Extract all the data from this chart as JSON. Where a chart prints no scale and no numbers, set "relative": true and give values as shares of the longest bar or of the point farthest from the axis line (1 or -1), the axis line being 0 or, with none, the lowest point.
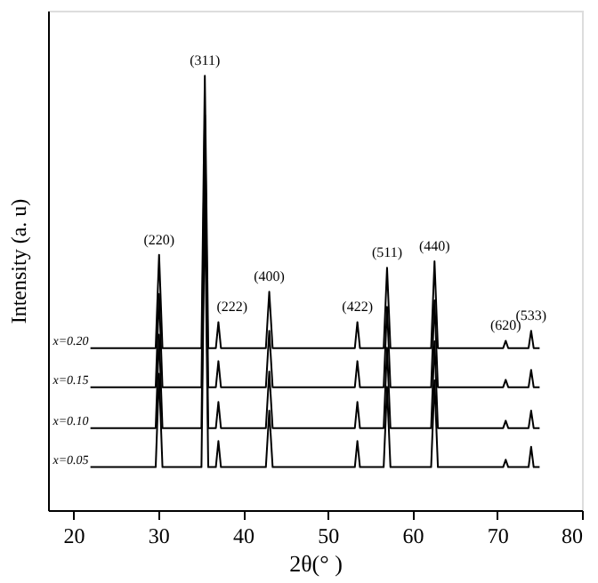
{
  "chart_data": {
    "type": "line",
    "relative": true,
    "xlabel": "2θ(° )",
    "ylabel": "Intensity (a. u)",
    "xlim": [
      17,
      80
    ],
    "xticks": [
      20,
      30,
      40,
      50,
      60,
      70,
      80
    ],
    "x": [
      22,
      29.7,
      30.1,
      30.5,
      35.1,
      35.5,
      35.9,
      36.8,
      37.1,
      37.4,
      42.7,
      43.1,
      43.5,
      53.2,
      53.5,
      53.8,
      56.6,
      57.0,
      57.4,
      62.2,
      62.6,
      63.0,
      70.7,
      71.0,
      71.3,
      73.7,
      74.0,
      74.3,
      75
    ],
    "series": [
      {
        "name": "x=0.20",
        "color": "#000000",
        "values": [
          0.373,
          0.373,
          0.588,
          0.373,
          0.373,
          1.0,
          0.373,
          0.373,
          0.433,
          0.373,
          0.373,
          0.503,
          0.373,
          0.373,
          0.433,
          0.373,
          0.373,
          0.558,
          0.373,
          0.373,
          0.573,
          0.373,
          0.373,
          0.39,
          0.373,
          0.373,
          0.413,
          0.373,
          0.373
        ]
      },
      {
        "name": "x=0.15",
        "color": "#000000",
        "values": [
          0.283,
          0.283,
          0.498,
          0.283,
          0.283,
          0.91,
          0.283,
          0.283,
          0.343,
          0.283,
          0.283,
          0.413,
          0.283,
          0.283,
          0.343,
          0.283,
          0.283,
          0.468,
          0.283,
          0.283,
          0.483,
          0.283,
          0.283,
          0.3,
          0.283,
          0.283,
          0.323,
          0.283,
          0.283
        ]
      },
      {
        "name": "x=0.10",
        "color": "#000000",
        "values": [
          0.189,
          0.189,
          0.404,
          0.189,
          0.189,
          0.816,
          0.189,
          0.189,
          0.249,
          0.189,
          0.189,
          0.319,
          0.189,
          0.189,
          0.249,
          0.189,
          0.189,
          0.374,
          0.189,
          0.189,
          0.389,
          0.189,
          0.189,
          0.206,
          0.189,
          0.189,
          0.229,
          0.189,
          0.189
        ]
      },
      {
        "name": "x=0.05",
        "color": "#000000",
        "values": [
          0.099,
          0.099,
          0.314,
          0.099,
          0.099,
          0.726,
          0.099,
          0.099,
          0.159,
          0.099,
          0.099,
          0.229,
          0.099,
          0.099,
          0.159,
          0.099,
          0.099,
          0.284,
          0.099,
          0.099,
          0.299,
          0.099,
          0.099,
          0.116,
          0.099,
          0.099,
          0.146,
          0.099,
          0.099
        ]
      }
    ],
    "annotations": [
      {
        "text": "(220)",
        "x": 30.1,
        "y": 0.588
      },
      {
        "text": "(311)",
        "x": 35.5,
        "y": 1.0
      },
      {
        "text": "(222)",
        "x": 37.1,
        "y": 0.433
      },
      {
        "text": "(400)",
        "x": 43.1,
        "y": 0.503
      },
      {
        "text": "(422)",
        "x": 53.5,
        "y": 0.433
      },
      {
        "text": "(511)",
        "x": 57.0,
        "y": 0.558
      },
      {
        "text": "(440)",
        "x": 62.6,
        "y": 0.573
      },
      {
        "text": "(620)",
        "x": 71.0,
        "y": 0.39
      },
      {
        "text": "(533)",
        "x": 74.0,
        "y": 0.413
      }
    ],
    "legend": false,
    "grid": false,
    "marker": "none",
    "line_style": "solid"
  }
}
